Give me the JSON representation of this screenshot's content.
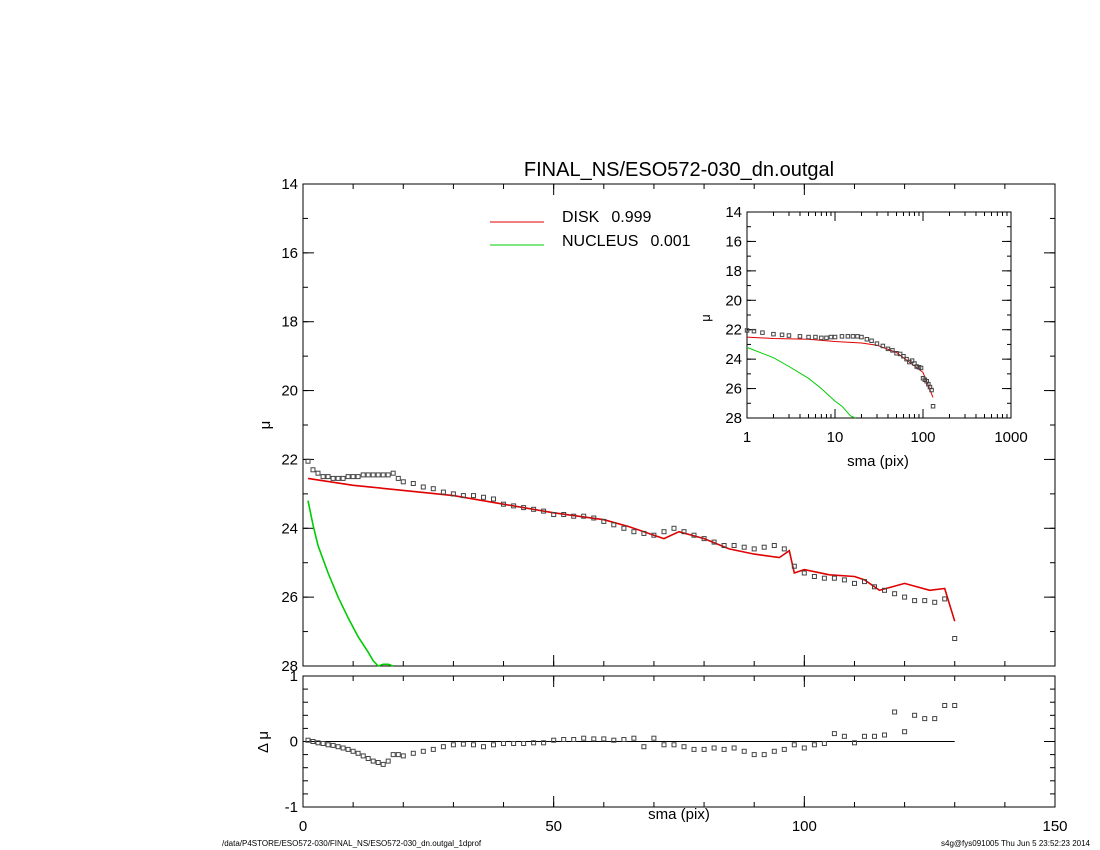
{
  "footer": {
    "path": "/data/P4STORE/ESO572-030/FINAL_NS/ESO572-030_dn.outgal_1dprof",
    "stamp": "s4g@fys091005  Thu Jun  5 23:52:23 2014"
  },
  "colors": {
    "disk": "#e00000",
    "nucleus": "#00cc00",
    "data": "#444444",
    "axis": "#000000"
  },
  "chart_data": [
    {
      "panel": "main profile",
      "type": "scatter",
      "title": "FINAL_NS/ESO572-030_dn.outgal",
      "xlabel": "",
      "ylabel": "μ",
      "xlim": [
        0,
        150
      ],
      "ylim": [
        28,
        14
      ],
      "y_inverted": true,
      "xticks": [
        "0",
        "50",
        "100",
        "150"
      ],
      "yticks": [
        "14",
        "16",
        "18",
        "20",
        "22",
        "24",
        "26",
        "28"
      ],
      "legend": {
        "placement": "top-center",
        "entries": [
          {
            "name": "DISK",
            "value": "0.999",
            "color": "#e00000"
          },
          {
            "name": "NUCLEUS",
            "value": "0.001",
            "color": "#00cc00"
          }
        ]
      },
      "series": [
        {
          "name": "DISK",
          "kind": "line",
          "color": "#e00000",
          "x": [
            1,
            10,
            20,
            30,
            40,
            50,
            60,
            65,
            70,
            72,
            75,
            80,
            85,
            90,
            95,
            97,
            98,
            100,
            105,
            110,
            112,
            115,
            120,
            125,
            128,
            130
          ],
          "y": [
            22.55,
            22.75,
            22.9,
            23.05,
            23.3,
            23.55,
            23.75,
            23.95,
            24.2,
            24.3,
            24.1,
            24.3,
            24.6,
            24.75,
            24.85,
            24.65,
            25.3,
            25.2,
            25.35,
            25.4,
            25.5,
            25.8,
            25.6,
            25.8,
            25.75,
            26.7
          ]
        },
        {
          "name": "NUCLEUS",
          "kind": "line",
          "color": "#00cc00",
          "x": [
            1,
            2,
            3,
            5,
            7,
            9,
            11,
            13,
            14,
            15,
            16,
            17,
            18
          ],
          "y": [
            23.2,
            23.9,
            24.5,
            25.3,
            26.0,
            26.6,
            27.15,
            27.6,
            27.85,
            28.0,
            27.95,
            27.95,
            28.1
          ]
        },
        {
          "name": "data",
          "kind": "points",
          "color": "#444444",
          "x": [
            1,
            2,
            3,
            4,
            5,
            6,
            7,
            8,
            9,
            10,
            11,
            12,
            13,
            14,
            15,
            16,
            17,
            18,
            19,
            20,
            22,
            24,
            26,
            28,
            30,
            32,
            34,
            36,
            38,
            40,
            42,
            44,
            46,
            48,
            50,
            52,
            54,
            56,
            58,
            60,
            62,
            64,
            66,
            68,
            70,
            72,
            74,
            76,
            78,
            80,
            82,
            84,
            86,
            88,
            90,
            92,
            94,
            96,
            98,
            100,
            102,
            104,
            106,
            108,
            110,
            112,
            114,
            116,
            118,
            120,
            122,
            124,
            126,
            128,
            130
          ],
          "y": [
            22.05,
            22.3,
            22.4,
            22.5,
            22.5,
            22.55,
            22.55,
            22.55,
            22.5,
            22.5,
            22.5,
            22.45,
            22.45,
            22.45,
            22.45,
            22.45,
            22.45,
            22.4,
            22.55,
            22.65,
            22.7,
            22.8,
            22.85,
            22.95,
            23.0,
            23.05,
            23.05,
            23.1,
            23.15,
            23.3,
            23.35,
            23.4,
            23.45,
            23.5,
            23.6,
            23.6,
            23.65,
            23.65,
            23.7,
            23.8,
            23.9,
            24.0,
            24.1,
            24.15,
            24.2,
            24.1,
            24.0,
            24.1,
            24.2,
            24.3,
            24.4,
            24.5,
            24.5,
            24.55,
            24.6,
            24.55,
            24.5,
            24.6,
            25.1,
            25.3,
            25.4,
            25.45,
            25.45,
            25.5,
            25.6,
            25.55,
            25.7,
            25.8,
            25.9,
            26.0,
            26.1,
            26.1,
            26.15,
            26.05,
            27.2
          ]
        }
      ]
    },
    {
      "panel": "inset",
      "type": "scatter",
      "title": "",
      "xlabel": "sma (pix)",
      "ylabel": "μ",
      "xscale": "log",
      "xlim": [
        1,
        1000
      ],
      "ylim": [
        28,
        14
      ],
      "y_inverted": true,
      "xticks": [
        "1",
        "10",
        "100",
        "1000"
      ],
      "yticks": [
        "14",
        "16",
        "18",
        "20",
        "22",
        "24",
        "26",
        "28"
      ],
      "series": [
        {
          "name": "DISK",
          "kind": "line",
          "color": "#e00000",
          "x": [
            1,
            2,
            5,
            10,
            20,
            30,
            50,
            70,
            100,
            130
          ],
          "y": [
            22.5,
            22.6,
            22.65,
            22.8,
            22.9,
            23.05,
            23.55,
            24.2,
            24.9,
            26.6
          ]
        },
        {
          "name": "NUCLEUS",
          "kind": "line",
          "color": "#00cc00",
          "x": [
            1,
            2,
            3,
            5,
            7,
            10,
            12,
            15,
            17
          ],
          "y": [
            23.2,
            23.9,
            24.5,
            25.3,
            26.0,
            26.85,
            27.2,
            27.85,
            28.0
          ]
        },
        {
          "name": "data",
          "kind": "points",
          "color": "#444444",
          "x": [
            1,
            1.2,
            1.5,
            2,
            2.5,
            3,
            4,
            5,
            6,
            7,
            8,
            9,
            10,
            12,
            14,
            16,
            18,
            20,
            23,
            26,
            30,
            35,
            40,
            45,
            50,
            55,
            60,
            65,
            70,
            75,
            80,
            85,
            90,
            95,
            100,
            105,
            110,
            115,
            120,
            125,
            130
          ],
          "y": [
            22.05,
            22.1,
            22.2,
            22.3,
            22.35,
            22.4,
            22.45,
            22.5,
            22.5,
            22.55,
            22.55,
            22.5,
            22.5,
            22.45,
            22.45,
            22.45,
            22.45,
            22.5,
            22.65,
            22.75,
            22.95,
            23.1,
            23.3,
            23.4,
            23.6,
            23.65,
            23.8,
            24.0,
            24.2,
            24.1,
            24.3,
            24.5,
            24.55,
            24.6,
            25.3,
            25.4,
            25.5,
            25.7,
            25.9,
            26.1,
            27.2
          ]
        }
      ]
    },
    {
      "panel": "residuals",
      "type": "scatter",
      "title": "",
      "xlabel": "sma (pix)",
      "ylabel": "Δ μ",
      "xlim": [
        0,
        150
      ],
      "ylim": [
        -1,
        1
      ],
      "xticks": [
        "0",
        "50",
        "100",
        "150"
      ],
      "yticks": [
        "1",
        "0",
        "-1"
      ],
      "reference_line": 0,
      "series": [
        {
          "name": "residual",
          "kind": "points",
          "color": "#444444",
          "x": [
            1,
            2,
            3,
            4,
            5,
            6,
            7,
            8,
            9,
            10,
            11,
            12,
            13,
            14,
            15,
            16,
            17,
            18,
            19,
            20,
            22,
            24,
            26,
            28,
            30,
            32,
            34,
            36,
            38,
            40,
            42,
            44,
            46,
            48,
            50,
            52,
            54,
            56,
            58,
            60,
            62,
            64,
            66,
            68,
            70,
            72,
            74,
            76,
            78,
            80,
            82,
            84,
            86,
            88,
            90,
            92,
            94,
            96,
            98,
            100,
            102,
            104,
            106,
            108,
            110,
            112,
            114,
            116,
            118,
            120,
            122,
            124,
            126,
            128,
            130
          ],
          "y": [
            0.02,
            0.0,
            -0.02,
            -0.03,
            -0.05,
            -0.06,
            -0.08,
            -0.1,
            -0.12,
            -0.15,
            -0.18,
            -0.22,
            -0.26,
            -0.3,
            -0.32,
            -0.35,
            -0.3,
            -0.2,
            -0.2,
            -0.22,
            -0.18,
            -0.15,
            -0.12,
            -0.08,
            -0.05,
            -0.04,
            -0.05,
            -0.08,
            -0.05,
            -0.03,
            -0.03,
            -0.03,
            -0.02,
            -0.02,
            0.02,
            0.03,
            0.03,
            0.05,
            0.04,
            0.04,
            0.02,
            0.03,
            0.05,
            -0.08,
            0.05,
            -0.05,
            -0.05,
            -0.08,
            -0.12,
            -0.12,
            -0.1,
            -0.12,
            -0.1,
            -0.15,
            -0.2,
            -0.2,
            -0.15,
            -0.12,
            -0.05,
            -0.1,
            -0.05,
            -0.03,
            0.12,
            0.08,
            -0.02,
            0.08,
            0.08,
            0.1,
            0.45,
            0.15,
            0.4,
            0.35,
            0.35,
            0.55,
            0.55
          ]
        }
      ]
    }
  ]
}
